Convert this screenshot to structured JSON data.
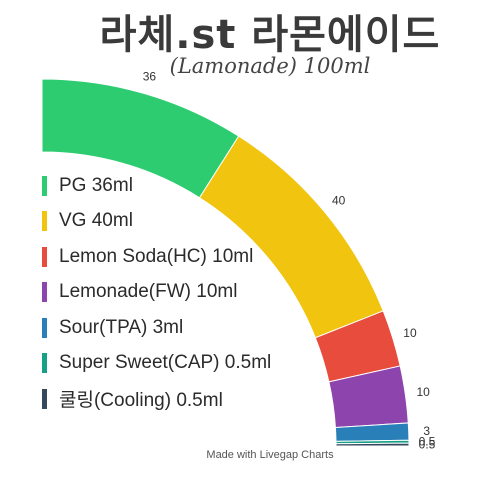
{
  "chart_data": {
    "type": "pie",
    "title": "라체.st 라몬에이드",
    "subtitle": "(Lamonade) 100ml",
    "credit": "Made with Livegap Charts",
    "slices": [
      {
        "label": "PG 36ml",
        "value": 36,
        "value_label": "36",
        "color": "#2ecc71"
      },
      {
        "label": "VG 40ml",
        "value": 40,
        "value_label": "40",
        "color": "#f1c40f"
      },
      {
        "label": "Lemon Soda(HC) 10ml",
        "value": 10,
        "value_label": "10",
        "color": "#e74c3c"
      },
      {
        "label": "Lemonade(FW) 10ml",
        "value": 10,
        "value_label": "10",
        "color": "#8e44ad"
      },
      {
        "label": "Sour(TPA) 3ml",
        "value": 3,
        "value_label": "3",
        "color": "#2980b9"
      },
      {
        "label": "Super Sweet(CAP) 0.5ml",
        "value": 0.5,
        "value_label": "0.5",
        "color": "#16a085"
      },
      {
        "label": "쿨링(Cooling) 0.5ml",
        "value": 0.5,
        "value_label": "0.5",
        "color": "#34495e"
      }
    ]
  }
}
